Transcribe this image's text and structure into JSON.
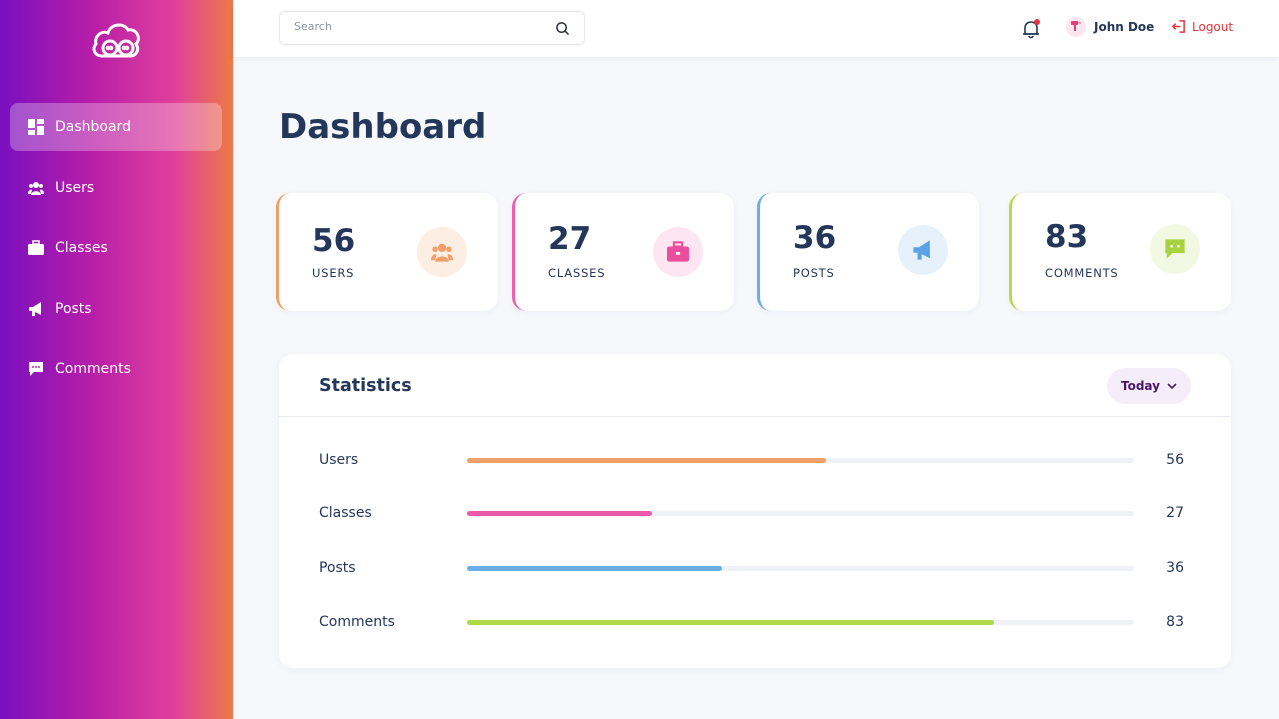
{
  "sidebar": {
    "logo_icon": "cloud-chat-icon",
    "items": [
      {
        "label": "Dashboard",
        "icon": "dashboard-icon",
        "active": true
      },
      {
        "label": "Users",
        "icon": "users-icon"
      },
      {
        "label": "Classes",
        "icon": "briefcase-icon"
      },
      {
        "label": "Posts",
        "icon": "megaphone-icon"
      },
      {
        "label": "Comments",
        "icon": "comment-icon"
      }
    ]
  },
  "header": {
    "search_placeholder": "Search",
    "user_name": "John Doe",
    "logout_label": "Logout"
  },
  "main": {
    "title": "Dashboard",
    "cards": [
      {
        "value": "56",
        "label": "USERS",
        "accent": "#f0a06a",
        "badge_bg": "#fdeee3",
        "icon": "users-icon"
      },
      {
        "value": "27",
        "label": "CLASSES",
        "accent": "#ea5fae",
        "badge_bg": "#fde6f2",
        "icon": "briefcase-icon"
      },
      {
        "value": "36",
        "label": "POSTS",
        "accent": "#6aaee8",
        "badge_bg": "#e7f1fc",
        "icon": "megaphone-icon"
      },
      {
        "value": "83",
        "label": "COMMENTS",
        "accent": "#b6dc4a",
        "badge_bg": "#f3f8e2",
        "icon": "comment-icon"
      }
    ],
    "statistics": {
      "title": "Statistics",
      "period": "Today",
      "rows": [
        {
          "label": "Users",
          "value": "56",
          "fraction": 0.538,
          "color": "#f0a06a"
        },
        {
          "label": "Classes",
          "value": "27",
          "fraction": 0.277,
          "color": "#ec5aac"
        },
        {
          "label": "Posts",
          "value": "36",
          "fraction": 0.383,
          "color": "#6aaee8"
        },
        {
          "label": "Comments",
          "value": "83",
          "fraction": 0.79,
          "color": "#b0d94a"
        }
      ]
    }
  }
}
